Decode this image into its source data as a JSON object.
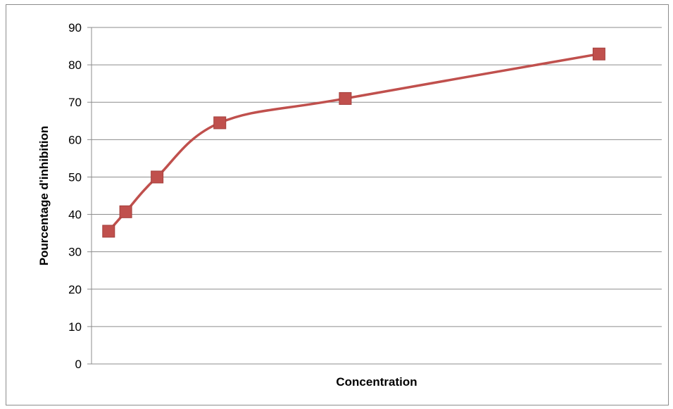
{
  "chart_data": {
    "type": "line",
    "title": "",
    "xlabel": "Concentration",
    "ylabel": "Pourcentage d'inhibition",
    "ylim": [
      0,
      90
    ],
    "yticks": [
      "0",
      "10",
      "20",
      "30",
      "40",
      "50",
      "60",
      "70",
      "80",
      "90"
    ],
    "xlim": [
      0,
      100
    ],
    "grid": "horizontal",
    "legend": "none",
    "series": [
      {
        "color": "#C0504D",
        "marker": "square",
        "smooth": true,
        "x": [
          3,
          6,
          11.5,
          22.5,
          44.5,
          89
        ],
        "values": [
          35.5,
          40.7,
          50,
          64.5,
          71,
          82.9
        ]
      }
    ]
  }
}
